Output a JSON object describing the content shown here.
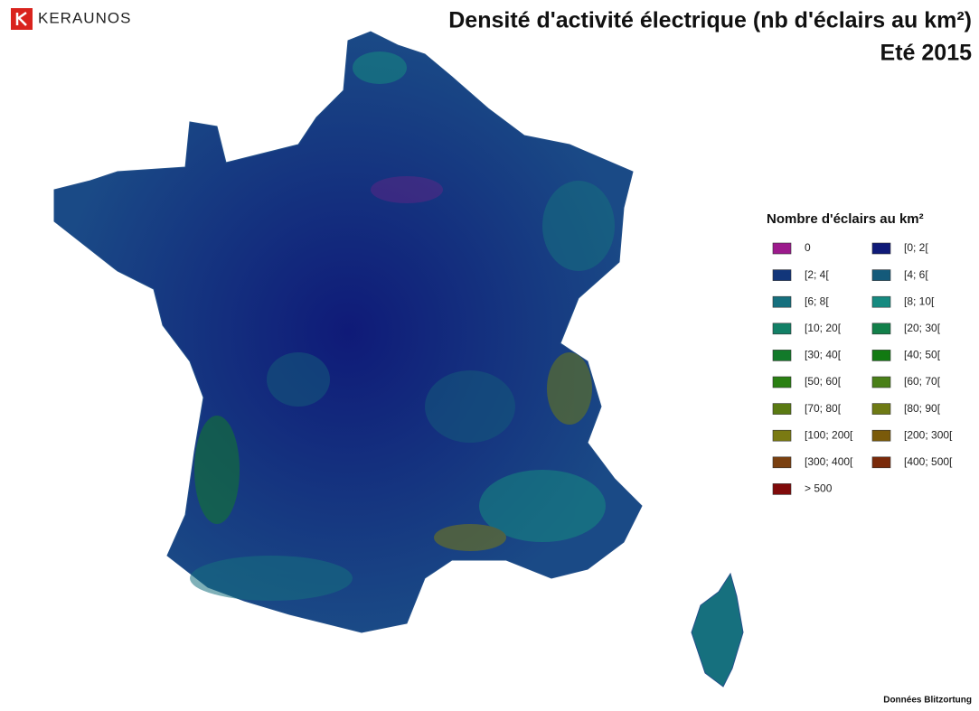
{
  "header": {
    "logo": "KERAUNOS",
    "title": [
      "Densité d'activité électrique (nb d'éclairs au km²)",
      "Eté 2015"
    ]
  },
  "legend": {
    "title": "Nombre d'éclairs au km²",
    "items": [
      {
        "label": "0",
        "color": "#9c1a8c"
      },
      {
        "label": "[0; 2[",
        "color": "#0f1a78"
      },
      {
        "label": "[2; 4[",
        "color": "#12367a"
      },
      {
        "label": "[4; 6[",
        "color": "#145a7a"
      },
      {
        "label": "[6; 8[",
        "color": "#16707e"
      },
      {
        "label": "[8; 10[",
        "color": "#168a80"
      },
      {
        "label": "[10; 20[",
        "color": "#128066"
      },
      {
        "label": "[20; 30[",
        "color": "#12804a"
      },
      {
        "label": "[30; 40[",
        "color": "#127a2a"
      },
      {
        "label": "[40; 50[",
        "color": "#127a12"
      },
      {
        "label": "[50; 60[",
        "color": "#2a8012"
      },
      {
        "label": "[60; 70[",
        "color": "#4a8018"
      },
      {
        "label": "[70; 80[",
        "color": "#5a7a12"
      },
      {
        "label": "[80; 90[",
        "color": "#6e7a14"
      },
      {
        "label": "[100; 200[",
        "color": "#7a7a12"
      },
      {
        "label": "[200; 300[",
        "color": "#7a5a0a"
      },
      {
        "label": "[300; 400[",
        "color": "#7a4010"
      },
      {
        "label": "[400; 500[",
        "color": "#7a2a0a"
      },
      {
        "label": "> 500",
        "color": "#800a0a"
      }
    ]
  },
  "footer": {
    "credit": "Données Blitzortung"
  }
}
